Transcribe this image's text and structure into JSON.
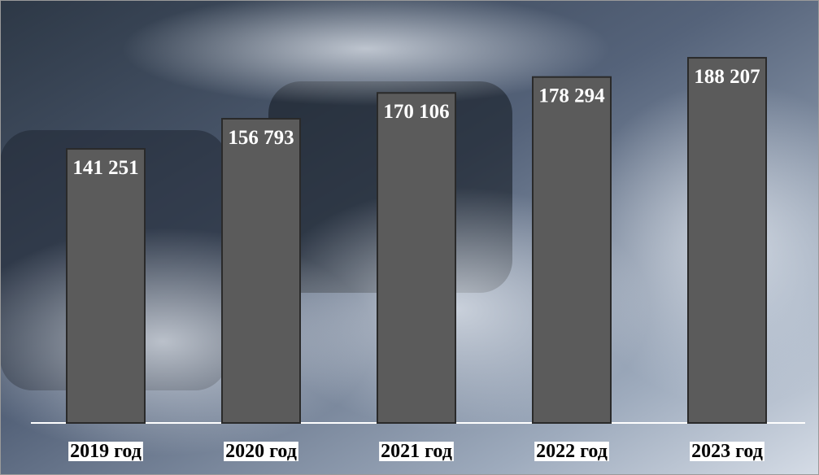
{
  "chart_data": {
    "type": "bar",
    "categories": [
      "2019 год",
      "2020 год",
      "2021 год",
      "2022 год",
      "2023 год"
    ],
    "values": [
      141251,
      156793,
      170106,
      178294,
      188207
    ],
    "value_labels": [
      "141 251",
      "156 793",
      "170 106",
      "178 294",
      "188 207"
    ],
    "color": "#5b5b5b",
    "ylim": [
      0,
      218000
    ]
  }
}
